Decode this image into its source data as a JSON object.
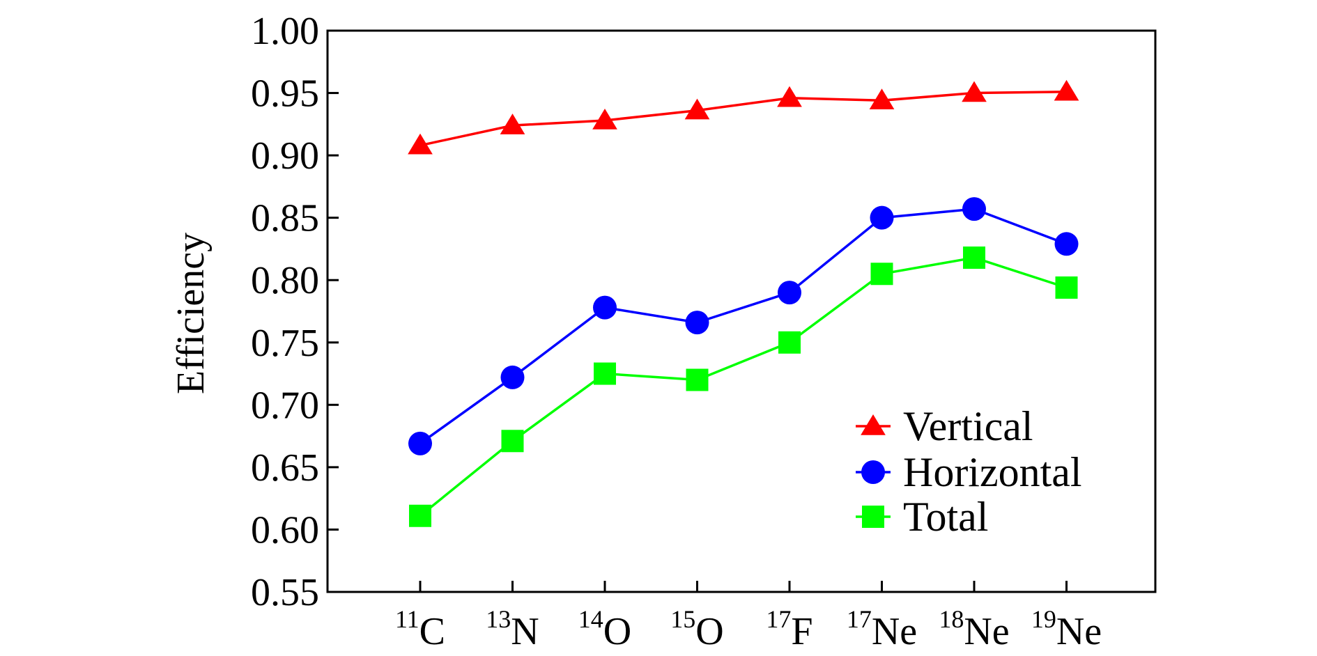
{
  "chart_data": {
    "type": "line",
    "title": "",
    "ylabel": "Efficiency",
    "xlabel": "",
    "ylim": [
      0.55,
      1.0
    ],
    "yticks": [
      "0.55",
      "0.60",
      "0.65",
      "0.70",
      "0.75",
      "0.80",
      "0.85",
      "0.90",
      "0.95",
      "1.00"
    ],
    "categories": [
      {
        "sup": "11",
        "base": "C"
      },
      {
        "sup": "13",
        "base": "N"
      },
      {
        "sup": "14",
        "base": "O"
      },
      {
        "sup": "15",
        "base": "O"
      },
      {
        "sup": "17",
        "base": "F"
      },
      {
        "sup": "17",
        "base": "Ne"
      },
      {
        "sup": "18",
        "base": "Ne"
      },
      {
        "sup": "19",
        "base": "Ne"
      }
    ],
    "series": [
      {
        "name": "Vertical",
        "color": "#ff0000",
        "marker": "triangle",
        "values": [
          0.908,
          0.924,
          0.928,
          0.936,
          0.946,
          0.944,
          0.95,
          0.951
        ]
      },
      {
        "name": "Horizontal",
        "color": "#0000ff",
        "marker": "circle",
        "values": [
          0.669,
          0.722,
          0.778,
          0.766,
          0.79,
          0.85,
          0.857,
          0.829
        ]
      },
      {
        "name": "Total",
        "color": "#00ff00",
        "marker": "square",
        "values": [
          0.611,
          0.671,
          0.725,
          0.72,
          0.75,
          0.805,
          0.818,
          0.794
        ]
      }
    ],
    "grid": false,
    "legend_position": "bottom-right"
  }
}
